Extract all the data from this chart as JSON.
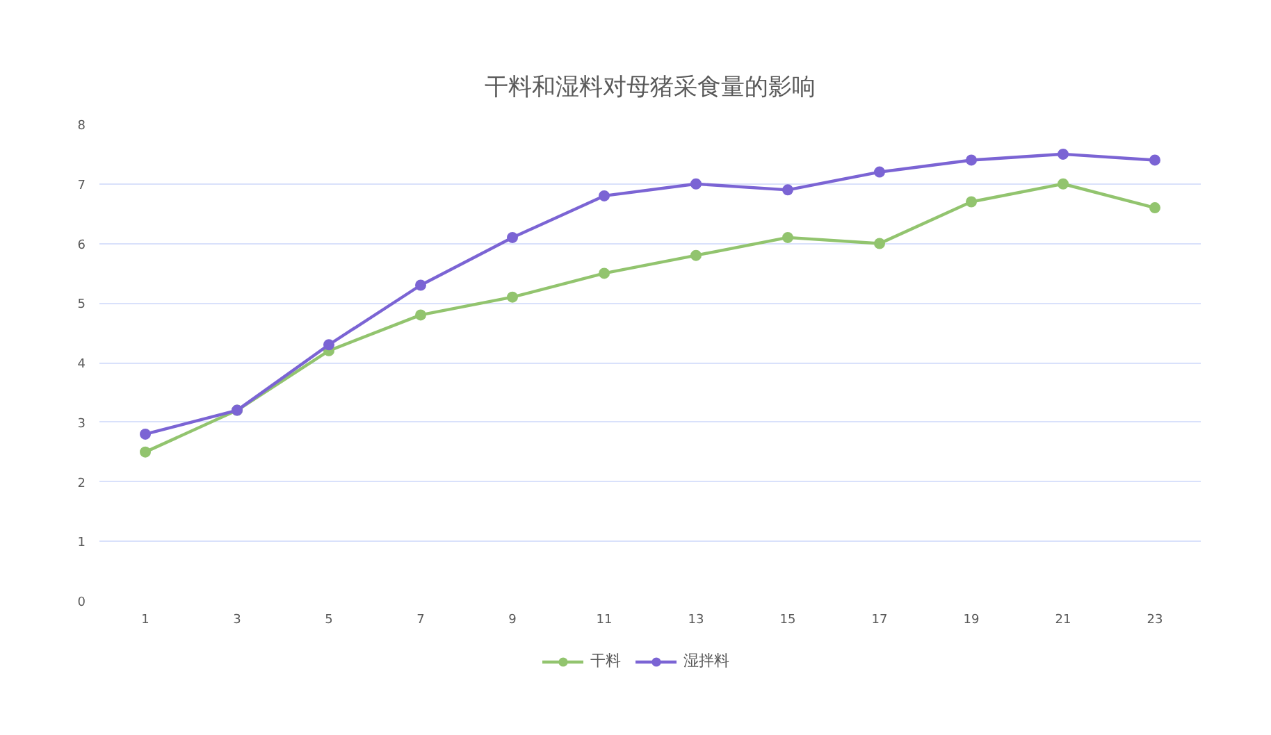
{
  "chart_data": {
    "type": "line",
    "title": "干料和湿料对母猪采食量的影响",
    "categories": [
      "1",
      "3",
      "5",
      "7",
      "9",
      "11",
      "13",
      "15",
      "17",
      "19",
      "21",
      "23"
    ],
    "series": [
      {
        "name": "干料",
        "color": "#92c46e",
        "values": [
          2.5,
          3.2,
          4.2,
          4.8,
          5.1,
          5.5,
          5.8,
          6.1,
          6.0,
          6.7,
          7.0,
          6.6
        ]
      },
      {
        "name": "湿拌料",
        "color": "#7b64d4",
        "values": [
          2.8,
          3.2,
          4.3,
          5.3,
          6.1,
          6.8,
          7.0,
          6.9,
          7.2,
          7.4,
          7.5,
          7.4
        ]
      }
    ],
    "ylim": [
      0,
      8
    ],
    "yticks": [
      0,
      1,
      2,
      3,
      4,
      5,
      6,
      7,
      8
    ],
    "grid": "y",
    "legend": "bottom",
    "marker": "circle"
  }
}
